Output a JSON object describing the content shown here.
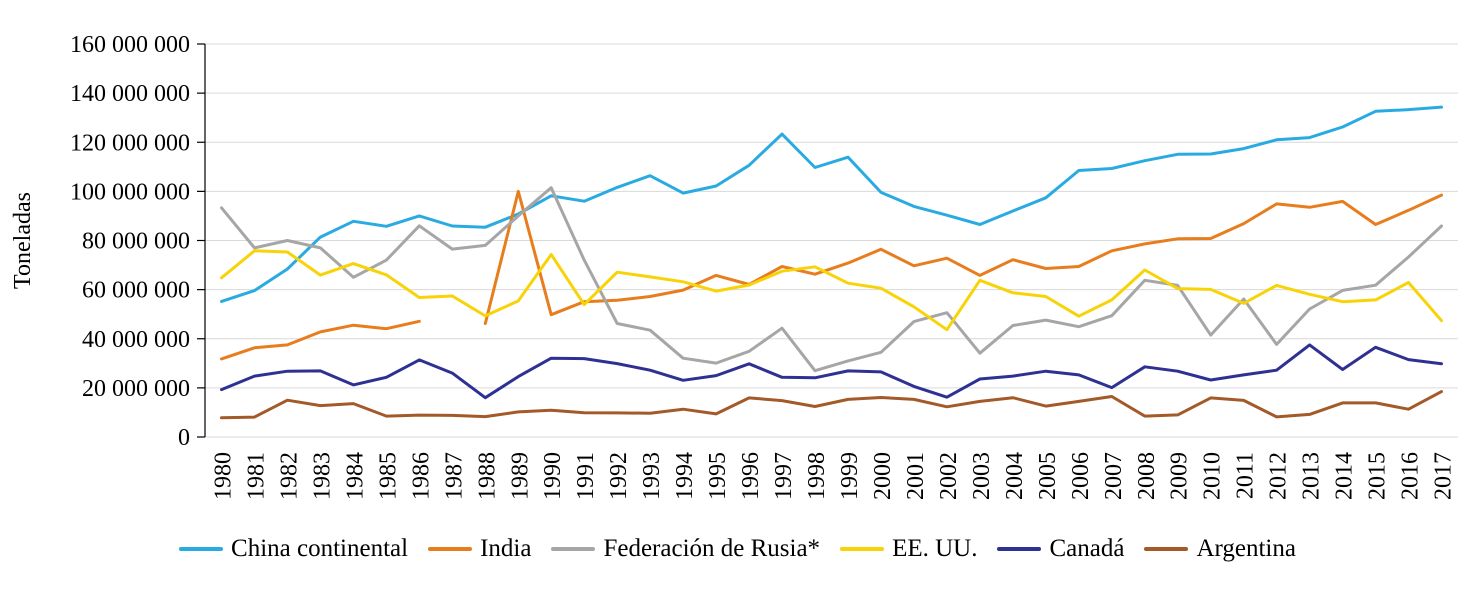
{
  "chart_data": {
    "type": "line",
    "title": "",
    "xlabel": "",
    "ylabel": "Toneladas",
    "ylim": [
      0,
      160000000
    ],
    "grid": "horizontal",
    "grid_color": "#D9D9D9",
    "axis_color": "#000000",
    "legend_position": "bottom",
    "y_ticks": [
      {
        "value": 0,
        "label": "0"
      },
      {
        "value": 20000000,
        "label": "20 000 000"
      },
      {
        "value": 40000000,
        "label": "40 000 000"
      },
      {
        "value": 60000000,
        "label": "60 000 000"
      },
      {
        "value": 80000000,
        "label": "80 000 000"
      },
      {
        "value": 100000000,
        "label": "100 000 000"
      },
      {
        "value": 120000000,
        "label": "120 000 000"
      },
      {
        "value": 140000000,
        "label": "140 000 000"
      },
      {
        "value": 160000000,
        "label": "160 000 000"
      }
    ],
    "x": [
      "1980",
      "1981",
      "1982",
      "1983",
      "1984",
      "1985",
      "1986",
      "1987",
      "1988",
      "1989",
      "1990",
      "1991",
      "1992",
      "1993",
      "1994",
      "1995",
      "1996",
      "1997",
      "1998",
      "1999",
      "2000",
      "2001",
      "2002",
      "2003",
      "2004",
      "2005",
      "2006",
      "2007",
      "2008",
      "2009",
      "2010",
      "2011",
      "2012",
      "2013",
      "2014",
      "2015",
      "2016",
      "2017"
    ],
    "series": [
      {
        "name": "China continental",
        "slug": "china-continental",
        "color": "#29ABE2",
        "values": [
          55200000,
          59600000,
          68400000,
          81400000,
          87800000,
          85800000,
          90000000,
          85900000,
          85400000,
          90800000,
          98200000,
          96000000,
          101600000,
          106400000,
          99300000,
          102200000,
          110600000,
          123300000,
          109700000,
          113900000,
          99600000,
          93900000,
          90300000,
          86500000,
          92000000,
          97400000,
          108500000,
          109300000,
          112500000,
          115100000,
          115200000,
          117400000,
          121000000,
          121900000,
          126200000,
          132600000,
          133300000,
          134300000
        ]
      },
      {
        "name": "India",
        "slug": "india",
        "color": "#E87D1E",
        "values": [
          31800000,
          36300000,
          37500000,
          42800000,
          45500000,
          44100000,
          47100000,
          null,
          46200000,
          100000000,
          49800000,
          55100000,
          55700000,
          57200000,
          59800000,
          65800000,
          62100000,
          69400000,
          66300000,
          70800000,
          76400000,
          69700000,
          72800000,
          65800000,
          72200000,
          68600000,
          69400000,
          75800000,
          78600000,
          80700000,
          80800000,
          86900000,
          94900000,
          93500000,
          95900000,
          86500000,
          92300000,
          98500000
        ]
      },
      {
        "name": "Federación de Rusia*",
        "slug": "federacion-de-rusia",
        "color": "#A6A6A6",
        "values": [
          93300000,
          77000000,
          80000000,
          77000000,
          65000000,
          72000000,
          86000000,
          76500000,
          78000000,
          90000000,
          101500000,
          72000000,
          46200000,
          43500000,
          32100000,
          30100000,
          34900000,
          44300000,
          27000000,
          31000000,
          34500000,
          47000000,
          50600000,
          34100000,
          45400000,
          47600000,
          44900000,
          49400000,
          63800000,
          61700000,
          41500000,
          56200000,
          37700000,
          52100000,
          59700000,
          61800000,
          73300000,
          85900000
        ]
      },
      {
        "name": "EE. UU.",
        "slug": "ee-uu",
        "color": "#F7D308",
        "values": [
          64800000,
          75800000,
          75300000,
          65900000,
          70600000,
          66000000,
          56800000,
          57400000,
          49300000,
          55400000,
          74300000,
          53900000,
          67100000,
          65200000,
          63200000,
          59400000,
          61900000,
          67500000,
          69300000,
          62600000,
          60600000,
          53000000,
          43700000,
          63800000,
          58700000,
          57200000,
          49200000,
          55800000,
          68000000,
          60400000,
          60100000,
          54400000,
          61700000,
          58100000,
          55100000,
          55800000,
          62900000,
          47400000
        ]
      },
      {
        "name": "Canadá",
        "slug": "canada",
        "color": "#2E3192",
        "values": [
          19300000,
          24800000,
          26800000,
          26900000,
          21200000,
          24300000,
          31400000,
          26000000,
          16000000,
          24600000,
          32100000,
          31900000,
          29900000,
          27200000,
          23100000,
          25000000,
          29800000,
          24300000,
          24100000,
          26900000,
          26500000,
          20600000,
          16200000,
          23600000,
          24800000,
          26800000,
          25300000,
          20100000,
          28600000,
          26800000,
          23200000,
          25300000,
          27200000,
          37500000,
          27500000,
          36500000,
          31500000,
          29800000
        ]
      },
      {
        "name": "Argentina",
        "slug": "argentina",
        "color": "#A45A28",
        "values": [
          7800000,
          8100000,
          15000000,
          12800000,
          13600000,
          8500000,
          8900000,
          8800000,
          8300000,
          10200000,
          10900000,
          9900000,
          9800000,
          9700000,
          11300000,
          9400000,
          15900000,
          14800000,
          12400000,
          15300000,
          16100000,
          15300000,
          12300000,
          14500000,
          16000000,
          12600000,
          14500000,
          16500000,
          8500000,
          9000000,
          15900000,
          14900000,
          8200000,
          9200000,
          13900000,
          13900000,
          11300000,
          18500000
        ]
      }
    ]
  }
}
